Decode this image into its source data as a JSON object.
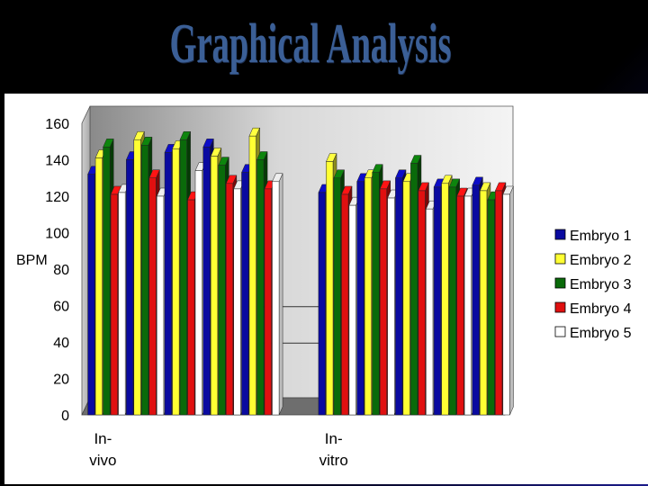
{
  "slide": {
    "title": "Graphical Analysis"
  },
  "chart_data": {
    "type": "bar",
    "title": "",
    "xlabel": "",
    "ylabel": "BPM",
    "ylim": [
      0,
      160
    ],
    "yticks": [
      0,
      20,
      40,
      60,
      80,
      100,
      120,
      140,
      160
    ],
    "group_labels": [
      {
        "lines": [
          "In-",
          "vivo"
        ],
        "at_category": 0
      },
      {
        "lines": [
          "In-",
          "vitro"
        ],
        "at_category": 6
      }
    ],
    "categories": [
      "",
      "",
      "",
      "",
      "",
      "",
      "",
      "",
      "",
      "",
      ""
    ],
    "series": [
      {
        "name": "Embryo 1",
        "color": "#0a0aa0",
        "values": [
          132,
          140,
          144,
          147,
          133,
          null,
          122,
          128,
          130,
          125,
          126
        ]
      },
      {
        "name": "Embryo 2",
        "color": "#ffff33",
        "values": [
          141,
          151,
          146,
          142,
          153,
          null,
          139,
          130,
          128,
          127,
          123
        ]
      },
      {
        "name": "Embryo 3",
        "color": "#0a6a0a",
        "values": [
          147,
          148,
          151,
          137,
          140,
          null,
          130,
          133,
          138,
          125,
          118
        ]
      },
      {
        "name": "Embryo 4",
        "color": "#e01010",
        "values": [
          121,
          130,
          118,
          127,
          124,
          null,
          121,
          124,
          123,
          120,
          123
        ]
      },
      {
        "name": "Embryo 5",
        "color": "#ffffff",
        "values": [
          122,
          120,
          134,
          124,
          128,
          null,
          115,
          119,
          113,
          120,
          121
        ]
      }
    ],
    "grid": false,
    "legend_position": "right",
    "background": "3d-gray-wall"
  }
}
